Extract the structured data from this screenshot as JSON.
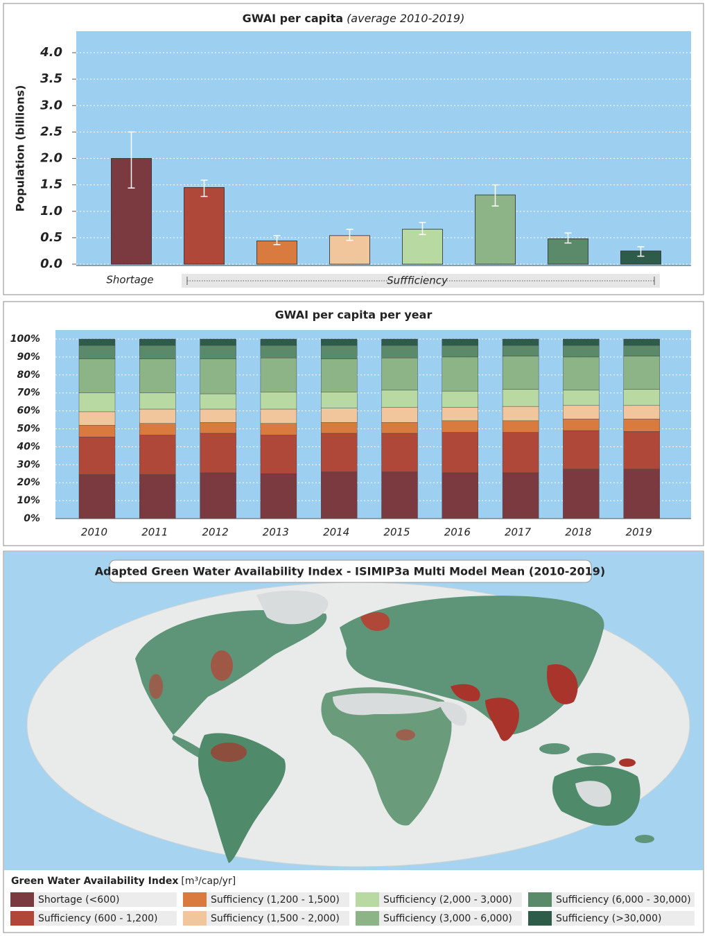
{
  "chart_data": [
    {
      "type": "bar",
      "title": "GWAI per capita",
      "subtitle": "(average 2010-2019)",
      "y_label": "Population (billions)",
      "categories": [
        "Shortage",
        null,
        null,
        null,
        null,
        null,
        null,
        null
      ],
      "group_label": "Suffficiency",
      "values": [
        2.0,
        1.45,
        0.44,
        0.54,
        0.66,
        1.31,
        0.48,
        0.25
      ],
      "error_low": [
        1.44,
        1.28,
        0.37,
        0.45,
        0.56,
        1.1,
        0.4,
        0.15
      ],
      "error_high": [
        2.5,
        1.59,
        0.54,
        0.66,
        0.79,
        1.5,
        0.59,
        0.33
      ],
      "colors": [
        "#7a3a3f",
        "#b0483a",
        "#d97a3f",
        "#f2c69c",
        "#b8d9a2",
        "#8cb486",
        "#5b8a6b",
        "#2f5b4b"
      ],
      "ylim": [
        0,
        4.4
      ],
      "yticks": [
        {
          "value": 0,
          "label": "0.0"
        },
        {
          "value": 0.5,
          "label": "0.5"
        },
        {
          "value": 1,
          "label": "1.0"
        },
        {
          "value": 1.5,
          "label": "1.5"
        },
        {
          "value": 2,
          "label": "2.0"
        },
        {
          "value": 2.5,
          "label": "2.5"
        },
        {
          "value": 3,
          "label": "3.0"
        },
        {
          "value": 3.5,
          "label": "3.5"
        },
        {
          "value": 4,
          "label": "4.0"
        }
      ],
      "grid": true
    },
    {
      "type": "stacked_bar",
      "title": "GWAI per capita per year",
      "categories": [
        "2010",
        "2011",
        "2012",
        "2013",
        "2014",
        "2015",
        "2016",
        "2017",
        "2018",
        "2019"
      ],
      "series": [
        {
          "name": "Shortage (<600)",
          "color": "#7a3a3f",
          "values": [
            24.5,
            24.5,
            25.5,
            25,
            26,
            26,
            25.5,
            25.5,
            27.5,
            27.5
          ]
        },
        {
          "name": "Sufficiency (600 - 1,200)",
          "color": "#b0483a",
          "values": [
            21,
            22,
            22,
            21.5,
            21.5,
            21.5,
            22.5,
            22.5,
            21.5,
            21
          ]
        },
        {
          "name": "Sufficiency (1,200 - 1,500)",
          "color": "#d97a3f",
          "values": [
            6.5,
            6.5,
            6,
            6.5,
            6,
            6,
            6.5,
            6.5,
            6.5,
            7
          ]
        },
        {
          "name": "Sufficiency (1,500 - 2,000)",
          "color": "#f2c69c",
          "values": [
            7.5,
            8,
            7.5,
            8,
            8,
            8.5,
            7.5,
            8,
            7.5,
            7.5
          ]
        },
        {
          "name": "Sufficiency (2,000 - 3,000)",
          "color": "#b8d9a2",
          "values": [
            10.5,
            9,
            8.5,
            9.5,
            9,
            9.5,
            9,
            9.5,
            8.5,
            9
          ]
        },
        {
          "name": "Sufficiency (3,000 - 6,000)",
          "color": "#8cb486",
          "values": [
            19,
            19,
            19.5,
            19,
            18.5,
            18,
            19,
            18.5,
            18.5,
            18.5
          ]
        },
        {
          "name": "Sufficiency (6,000 - 30,000)",
          "color": "#5b8a6b",
          "values": [
            7.5,
            7.5,
            7.5,
            7,
            7.5,
            7,
            6.5,
            6,
            6.5,
            6
          ]
        },
        {
          "name": "Sufficiency (>30,000)",
          "color": "#2f5b4b",
          "values": [
            3.5,
            3.5,
            3.5,
            3.5,
            3.5,
            3.5,
            3.5,
            3.5,
            3.5,
            3.5
          ]
        }
      ],
      "ylim": [
        0,
        105
      ],
      "yticks": [
        {
          "value": 0,
          "label": "0%"
        },
        {
          "value": 10,
          "label": "10%"
        },
        {
          "value": 20,
          "label": "20%"
        },
        {
          "value": 30,
          "label": "30%"
        },
        {
          "value": 40,
          "label": "40%"
        },
        {
          "value": 50,
          "label": "50%"
        },
        {
          "value": 60,
          "label": "60%"
        },
        {
          "value": 70,
          "label": "70%"
        },
        {
          "value": 80,
          "label": "80%"
        },
        {
          "value": 90,
          "label": "90%"
        },
        {
          "value": 100,
          "label": "100%"
        }
      ],
      "grid": true
    }
  ],
  "map": {
    "title": "Adapted Green Water Availability Index - ISIMIP3a Multi Model Mean (2010-2019)",
    "legend_title": "Green Water Availability Index",
    "legend_unit": "[m³/cap/yr]"
  }
}
